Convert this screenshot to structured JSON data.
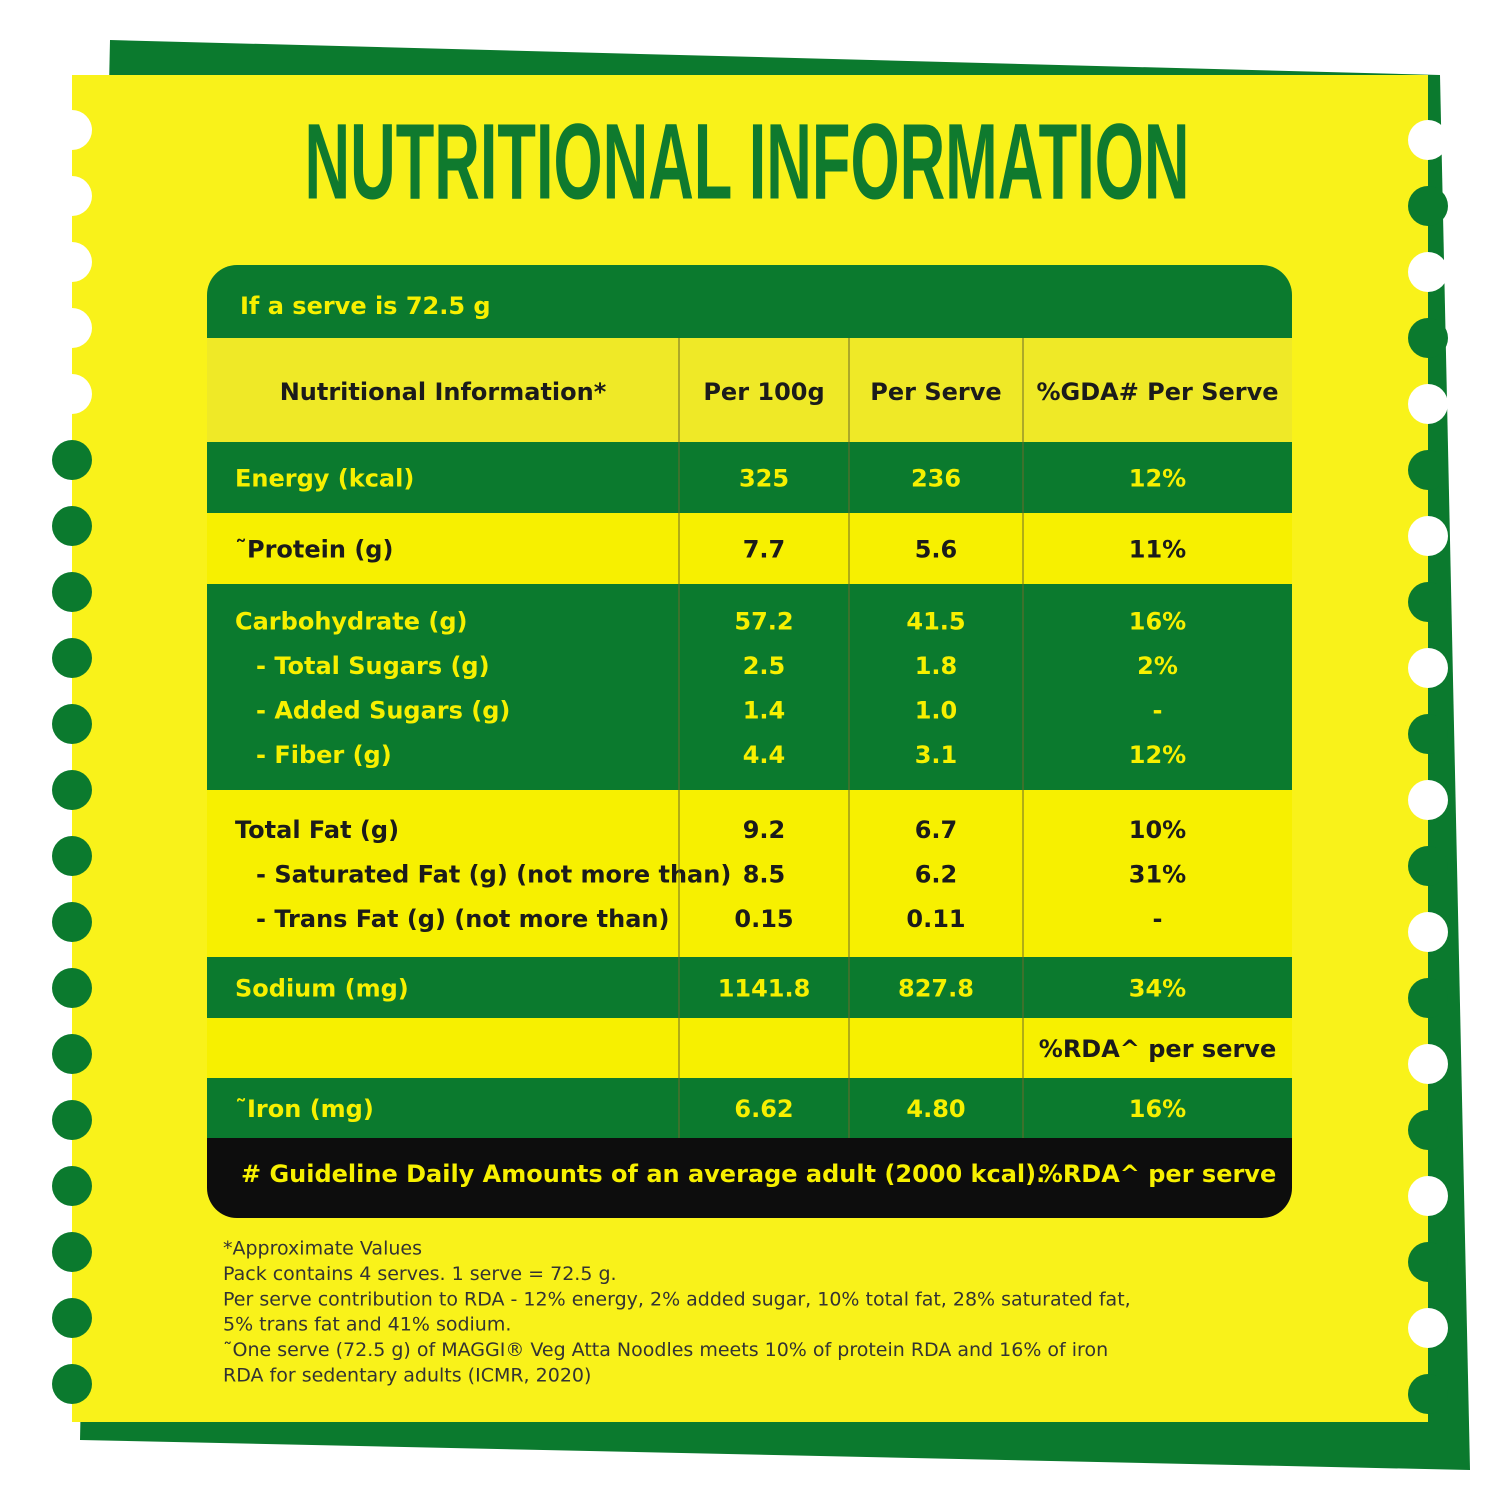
{
  "title": "NUTRITIONAL INFORMATION",
  "table": {
    "serve_note": "If a serve is 72.5 g",
    "header": [
      "Nutritional Information*",
      "Per 100g",
      "Per Serve",
      "%GDA# Per Serve"
    ],
    "groups": [
      [
        [
          "Energy (kcal)",
          "325",
          "236",
          "12%"
        ]
      ],
      [
        [
          "˜Protein (g)",
          "7.7",
          "5.6",
          "11%"
        ]
      ],
      [
        [
          "Carbohydrate (g)",
          "57.2",
          "41.5",
          "16%"
        ],
        [
          "- Total Sugars (g)",
          "2.5",
          "1.8",
          "2%"
        ],
        [
          "- Added Sugars (g)",
          "1.4",
          "1.0",
          "-"
        ],
        [
          "- Fiber (g)",
          "4.4",
          "3.1",
          "12%"
        ]
      ],
      [
        [
          "Total Fat (g)",
          "9.2",
          "6.7",
          "10%"
        ],
        [
          "- Saturated Fat (g) (not more than)",
          "8.5",
          "6.2",
          "31%"
        ],
        [
          "- Trans Fat (g) (not more than)",
          "0.15",
          "0.11",
          "-"
        ]
      ],
      [
        [
          "Sodium (mg)",
          "1141.8",
          "827.8",
          "34%"
        ]
      ],
      [
        [
          null,
          null,
          null,
          "%RDA^ per serve"
        ]
      ],
      [
        [
          "˜Iron (mg)",
          "6.62",
          "4.80",
          "16%"
        ]
      ]
    ],
    "footer": [
      "# Guideline Daily Amounts of an average adult (2000 kcal).",
      "%RDA^ per serve"
    ]
  },
  "notes": [
    "*Approximate Values",
    "Pack contains 4 serves. 1 serve = 72.5 g.",
    "Per serve contribution to RDA - 12% energy, 2% added sugar, 10% total fat, 28% saturated fat,",
    "5% trans fat and 41% sodium.",
    "˜One serve (72.5 g) of MAGGI® Veg Atta Noodles meets 10% of protein RDA and 16% of iron",
    "RDA for sedentary adults (ICMR, 2020)"
  ]
}
